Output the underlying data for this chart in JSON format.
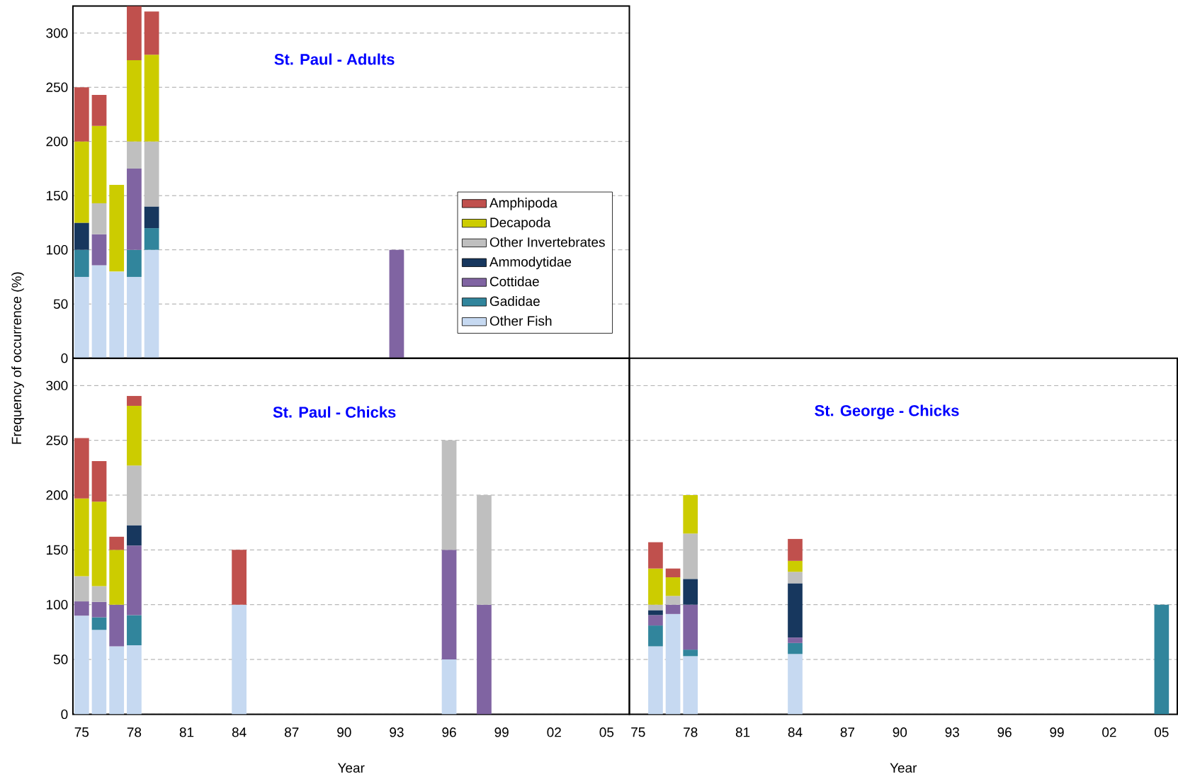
{
  "chart_data": [
    {
      "type": "bar",
      "stacked": true,
      "title": "St. Paul - Adults",
      "ylabel": "Frequency of occurrence (%)",
      "x": [
        1975,
        1976,
        1977,
        1978,
        1979,
        1993
      ],
      "xlim": [
        1974.5,
        2006.3
      ],
      "xticks": [
        {
          "value": 1975,
          "label": null
        },
        {
          "value": 1978,
          "label": null
        },
        {
          "value": 1981,
          "label": null
        },
        {
          "value": 1984,
          "label": null
        },
        {
          "value": 1987,
          "label": null
        },
        {
          "value": 1990,
          "label": null
        },
        {
          "value": 1993,
          "label": null
        },
        {
          "value": 1996,
          "label": null
        },
        {
          "value": 1999,
          "label": null
        },
        {
          "value": 2002,
          "label": null
        },
        {
          "value": 2005,
          "label": null
        }
      ],
      "ylim": [
        0,
        325
      ],
      "yticks": [
        0,
        50,
        100,
        150,
        200,
        250,
        300
      ],
      "grid": "y",
      "tick_labels": "y",
      "legend": "bottom right",
      "series": [
        {
          "name": "Other Fish",
          "color": "#c6d9f1",
          "values": [
            75,
            85.7,
            80,
            75,
            100,
            null
          ]
        },
        {
          "name": "Gadidae",
          "color": "#31859c",
          "values": [
            25,
            null,
            null,
            25,
            20,
            null
          ]
        },
        {
          "name": "Cottidae",
          "color": "#8064a2",
          "values": [
            null,
            28.6,
            null,
            75,
            null,
            100
          ]
        },
        {
          "name": "Ammodytidae",
          "color": "#17375e",
          "values": [
            25,
            null,
            null,
            null,
            20,
            null
          ]
        },
        {
          "name": "Other Invertebrates",
          "color": "#bfbfbf",
          "values": [
            null,
            28.6,
            null,
            25,
            60,
            null
          ]
        },
        {
          "name": "Decapoda",
          "color": "#cccc00",
          "values": [
            75,
            71.4,
            80,
            75,
            80,
            null
          ]
        },
        {
          "name": "Amphipoda",
          "color": "#c0504d",
          "values": [
            50,
            28.6,
            null,
            50,
            40,
            null
          ]
        }
      ]
    },
    {
      "type": "bar",
      "stacked": true,
      "title": "St. Paul - Chicks",
      "xlabel": "Year",
      "x": [
        1975,
        1976,
        1977,
        1978,
        1984,
        1996,
        1998
      ],
      "xlim": [
        1974.5,
        2006.3
      ],
      "xticks": [
        {
          "value": 1975,
          "label": "75"
        },
        {
          "value": 1978,
          "label": "78"
        },
        {
          "value": 1981,
          "label": "81"
        },
        {
          "value": 1984,
          "label": "84"
        },
        {
          "value": 1987,
          "label": "87"
        },
        {
          "value": 1990,
          "label": "90"
        },
        {
          "value": 1993,
          "label": "93"
        },
        {
          "value": 1996,
          "label": "96"
        },
        {
          "value": 1999,
          "label": "99"
        },
        {
          "value": 2002,
          "label": "02"
        },
        {
          "value": 2005,
          "label": "05"
        }
      ],
      "ylim": [
        0,
        325
      ],
      "yticks": [
        0,
        50,
        100,
        150,
        200,
        250,
        300
      ],
      "grid": "y",
      "series": [
        {
          "color": "#c6d9f1",
          "values": [
            90,
            77,
            62,
            63,
            100,
            50,
            null
          ]
        },
        {
          "color": "#31859c",
          "values": [
            null,
            11.5,
            null,
            27.5,
            null,
            null,
            null
          ]
        },
        {
          "color": "#8064a2",
          "values": [
            13,
            14,
            38,
            63.5,
            null,
            100,
            100
          ]
        },
        {
          "color": "#17375e",
          "values": [
            null,
            null,
            null,
            18.5,
            null,
            null,
            null
          ]
        },
        {
          "color": "#bfbfbf",
          "values": [
            23,
            14.5,
            null,
            54.5,
            null,
            100,
            100
          ]
        },
        {
          "color": "#cccc00",
          "values": [
            71,
            77,
            50,
            54.5,
            null,
            null,
            null
          ]
        },
        {
          "color": "#c0504d",
          "values": [
            55,
            37,
            12,
            9,
            50,
            null,
            null
          ]
        }
      ]
    },
    {
      "type": "bar",
      "stacked": true,
      "title": "St. George - Chicks",
      "xlabel": "Year",
      "x": [
        1976,
        1977,
        1978,
        1984,
        2005
      ],
      "xlim": [
        1974.5,
        2005.9
      ],
      "xticks": [
        {
          "value": 1975,
          "label": "75"
        },
        {
          "value": 1978,
          "label": "78"
        },
        {
          "value": 1981,
          "label": "81"
        },
        {
          "value": 1984,
          "label": "84"
        },
        {
          "value": 1987,
          "label": "87"
        },
        {
          "value": 1990,
          "label": "90"
        },
        {
          "value": 1993,
          "label": "93"
        },
        {
          "value": 1996,
          "label": "96"
        },
        {
          "value": 1999,
          "label": "99"
        },
        {
          "value": 2002,
          "label": "02"
        },
        {
          "value": 2005,
          "label": "05"
        }
      ],
      "ylim": [
        0,
        325
      ],
      "yticks": [
        0,
        50,
        100,
        150,
        200,
        250,
        300
      ],
      "grid": "y",
      "tick_labels": "x",
      "series": [
        {
          "color": "#c6d9f1",
          "values": [
            62,
            91.5,
            53,
            55,
            null
          ]
        },
        {
          "color": "#31859c",
          "values": [
            19,
            null,
            6,
            10,
            100
          ]
        },
        {
          "color": "#8064a2",
          "values": [
            9.5,
            8.5,
            41,
            5,
            null
          ]
        },
        {
          "color": "#17375e",
          "values": [
            4.5,
            null,
            23.5,
            49.5,
            null
          ]
        },
        {
          "color": "#bfbfbf",
          "values": [
            5,
            8,
            41.5,
            10.5,
            null
          ]
        },
        {
          "color": "#cccc00",
          "values": [
            33,
            17,
            35,
            10,
            null
          ]
        },
        {
          "color": "#c0504d",
          "values": [
            24,
            8,
            null,
            20,
            null
          ]
        }
      ]
    }
  ]
}
